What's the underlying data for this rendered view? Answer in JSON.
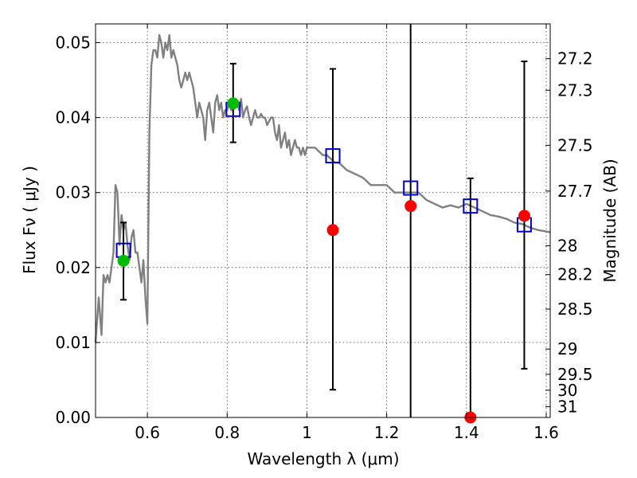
{
  "chart_data": {
    "type": "scatter",
    "title": "",
    "xlabel": "Wavelength  λ (μm)",
    "ylabel": "Flux  Fν ( μJy )",
    "ylabel_right": "Magnitude (AB)",
    "xlim": [
      0.47,
      1.61
    ],
    "ylim": [
      0.0,
      0.0525
    ],
    "grid": true,
    "x_ticks": [
      0.6,
      0.8,
      1,
      1.2,
      1.4,
      1.6
    ],
    "x_tick_labels": [
      "0.6",
      "0.8",
      "1",
      "1.2",
      "1.4",
      "1.6"
    ],
    "y_ticks": [
      0.0,
      0.01,
      0.02,
      0.03,
      0.04,
      0.05
    ],
    "y_tick_labels": [
      "0.00",
      "0.01",
      "0.02",
      "0.03",
      "0.04",
      "0.05"
    ],
    "magnitude_ticks": [
      {
        "label": "27.2",
        "mag": 27.2
      },
      {
        "label": "27.3",
        "mag": 27.3
      },
      {
        "label": "27.5",
        "mag": 27.5
      },
      {
        "label": "27.7",
        "mag": 27.7
      },
      {
        "label": "28",
        "mag": 28.0
      },
      {
        "label": "28.2",
        "mag": 28.2
      },
      {
        "label": "28.5",
        "mag": 28.5
      },
      {
        "label": "29",
        "mag": 29.0
      },
      {
        "label": "29.5",
        "mag": 29.5
      },
      {
        "label": "30",
        "mag": 30.0
      },
      {
        "label": "31",
        "mag": 31.0
      }
    ],
    "colors": {
      "sed": "#808080",
      "model_box": "#0000cc",
      "detection": "#00bb00",
      "nondetection": "#ff0000",
      "errorbar": "#000000"
    },
    "series": [
      {
        "name": "SED model",
        "style": "line",
        "x": [
          0.47,
          0.478,
          0.485,
          0.49,
          0.495,
          0.5,
          0.505,
          0.51,
          0.515,
          0.52,
          0.525,
          0.53,
          0.535,
          0.54,
          0.545,
          0.55,
          0.555,
          0.56,
          0.565,
          0.57,
          0.575,
          0.58,
          0.585,
          0.59,
          0.595,
          0.6,
          0.605,
          0.61,
          0.615,
          0.62,
          0.625,
          0.63,
          0.635,
          0.64,
          0.645,
          0.65,
          0.655,
          0.66,
          0.665,
          0.67,
          0.675,
          0.68,
          0.685,
          0.69,
          0.695,
          0.7,
          0.705,
          0.71,
          0.715,
          0.72,
          0.725,
          0.73,
          0.735,
          0.74,
          0.745,
          0.75,
          0.755,
          0.76,
          0.765,
          0.77,
          0.775,
          0.78,
          0.785,
          0.79,
          0.795,
          0.8,
          0.805,
          0.81,
          0.815,
          0.82,
          0.825,
          0.83,
          0.835,
          0.84,
          0.845,
          0.85,
          0.855,
          0.86,
          0.865,
          0.87,
          0.875,
          0.88,
          0.885,
          0.89,
          0.895,
          0.9,
          0.905,
          0.91,
          0.915,
          0.92,
          0.925,
          0.93,
          0.935,
          0.94,
          0.945,
          0.95,
          0.955,
          0.96,
          0.965,
          0.97,
          0.975,
          0.98,
          0.985,
          0.99,
          0.995,
          1.0,
          1.01,
          1.02,
          1.03,
          1.04,
          1.05,
          1.06,
          1.07,
          1.08,
          1.1,
          1.12,
          1.14,
          1.16,
          1.18,
          1.2,
          1.22,
          1.24,
          1.26,
          1.28,
          1.3,
          1.32,
          1.34,
          1.36,
          1.38,
          1.4,
          1.42,
          1.44,
          1.46,
          1.48,
          1.5,
          1.52,
          1.54,
          1.56,
          1.58,
          1.6,
          1.61
        ],
        "y": [
          0.01,
          0.016,
          0.011,
          0.019,
          0.018,
          0.019,
          0.018,
          0.02,
          0.022,
          0.031,
          0.03,
          0.023,
          0.027,
          0.025,
          0.026,
          0.023,
          0.021,
          0.024,
          0.025,
          0.022,
          0.022,
          0.02,
          0.018,
          0.021,
          0.016,
          0.0125,
          0.038,
          0.047,
          0.049,
          0.049,
          0.048,
          0.051,
          0.05,
          0.048,
          0.05,
          0.049,
          0.051,
          0.048,
          0.049,
          0.048,
          0.047,
          0.045,
          0.044,
          0.045,
          0.046,
          0.045,
          0.046,
          0.045,
          0.044,
          0.042,
          0.04,
          0.042,
          0.041,
          0.04,
          0.037,
          0.041,
          0.042,
          0.04,
          0.038,
          0.042,
          0.043,
          0.041,
          0.042,
          0.04,
          0.041,
          0.041,
          0.042,
          0.041,
          0.041,
          0.042,
          0.042,
          0.041,
          0.0425,
          0.04,
          0.041,
          0.0415,
          0.04,
          0.039,
          0.04,
          0.041,
          0.04,
          0.04,
          0.0405,
          0.04,
          0.04,
          0.039,
          0.0395,
          0.04,
          0.04,
          0.038,
          0.037,
          0.039,
          0.036,
          0.037,
          0.038,
          0.036,
          0.037,
          0.035,
          0.036,
          0.037,
          0.036,
          0.036,
          0.035,
          0.036,
          0.035,
          0.036,
          0.036,
          0.036,
          0.0355,
          0.035,
          0.035,
          0.0345,
          0.034,
          0.034,
          0.033,
          0.0325,
          0.032,
          0.031,
          0.031,
          0.031,
          0.03,
          0.03,
          0.03,
          0.03,
          0.029,
          0.0285,
          0.028,
          0.0283,
          0.028,
          0.0285,
          0.028,
          0.0275,
          0.027,
          0.0268,
          0.0265,
          0.026,
          0.0258,
          0.0253,
          0.025,
          0.0248,
          0.0247
        ]
      },
      {
        "name": "Model photometry",
        "style": "open-square",
        "x": [
          0.54,
          0.815,
          1.065,
          1.26,
          1.41,
          1.545
        ],
        "y": [
          0.0223,
          0.0411,
          0.0349,
          0.0306,
          0.0282,
          0.0257
        ]
      },
      {
        "name": "Detections",
        "style": "filled-circle",
        "x": [
          0.54,
          0.815
        ],
        "y": [
          0.0209,
          0.0419
        ]
      },
      {
        "name": "Observed (non-detections)",
        "style": "filled-circle",
        "x": [
          1.065,
          1.26,
          1.41,
          1.545
        ],
        "y": [
          0.025,
          0.0282,
          0.0,
          0.0269
        ]
      },
      {
        "name": "Error bars",
        "style": "errorbar",
        "x": [
          0.54,
          0.815,
          1.065,
          1.26,
          1.41,
          1.545
        ],
        "low": [
          0.0157,
          0.0367,
          0.0037,
          0.0,
          0.0,
          0.0065
        ],
        "high": [
          0.026,
          0.0472,
          0.0465,
          0.0525,
          0.0319,
          0.0475
        ]
      }
    ]
  }
}
